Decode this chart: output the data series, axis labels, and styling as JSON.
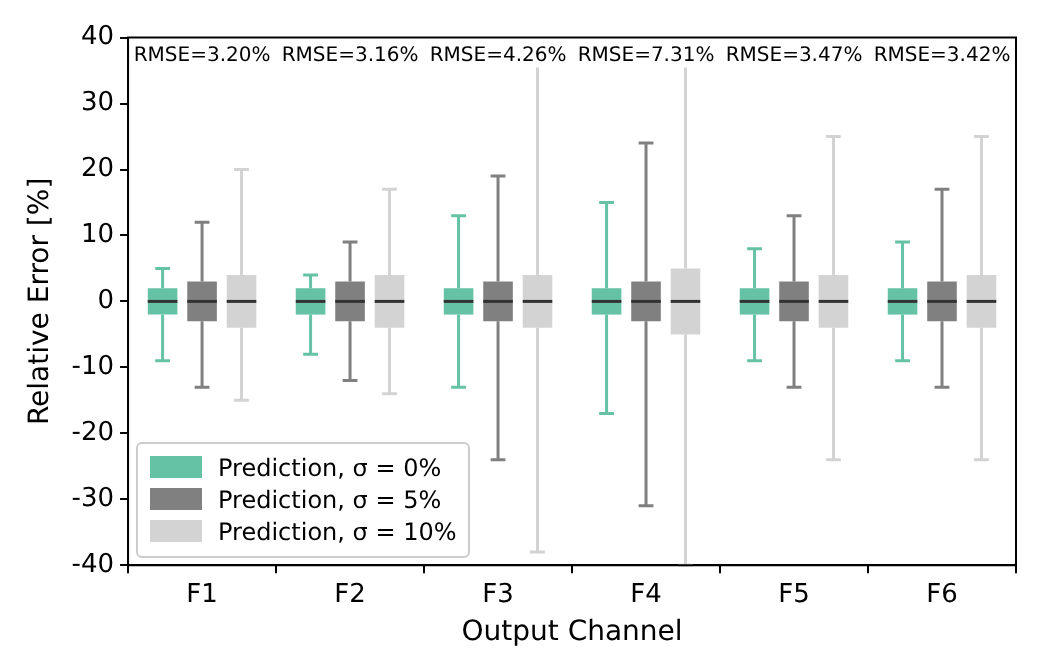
{
  "chart_data": {
    "type": "box",
    "xlabel": "Output Channel",
    "ylabel": "Relative Error [%]",
    "categories": [
      "F1",
      "F2",
      "F3",
      "F4",
      "F5",
      "F6"
    ],
    "ylim": [
      -40,
      40
    ],
    "yticks": [
      -40,
      -30,
      -20,
      -10,
      0,
      10,
      20,
      30,
      40
    ],
    "grid": false,
    "legend": "bottom left",
    "annotations": [
      "RMSE=3.20%",
      "RMSE=3.16%",
      "RMSE=4.26%",
      "RMSE=7.31%",
      "RMSE=3.47%",
      "RMSE=3.42%"
    ],
    "series": [
      {
        "name": "Prediction, σ = 0%",
        "color": "#66c2a5",
        "boxes": [
          {
            "low": -9,
            "q1": -2,
            "median": 0,
            "q3": 2,
            "high": 5
          },
          {
            "low": -8,
            "q1": -2,
            "median": 0,
            "q3": 2,
            "high": 4
          },
          {
            "low": -13,
            "q1": -2,
            "median": 0,
            "q3": 2,
            "high": 13
          },
          {
            "low": -17,
            "q1": -2,
            "median": 0,
            "q3": 2,
            "high": 15
          },
          {
            "low": -9,
            "q1": -2,
            "median": 0,
            "q3": 2,
            "high": 8
          },
          {
            "low": -9,
            "q1": -2,
            "median": 0,
            "q3": 2,
            "high": 9
          }
        ]
      },
      {
        "name": "Prediction, σ = 5%",
        "color": "#808080",
        "boxes": [
          {
            "low": -13,
            "q1": -3,
            "median": 0,
            "q3": 3,
            "high": 12
          },
          {
            "low": -12,
            "q1": -3,
            "median": 0,
            "q3": 3,
            "high": 9
          },
          {
            "low": -24,
            "q1": -3,
            "median": 0,
            "q3": 3,
            "high": 19
          },
          {
            "low": -31,
            "q1": -3,
            "median": 0,
            "q3": 3,
            "high": 24
          },
          {
            "low": -13,
            "q1": -3,
            "median": 0,
            "q3": 3,
            "high": 13
          },
          {
            "low": -13,
            "q1": -3,
            "median": 0,
            "q3": 3,
            "high": 17
          }
        ]
      },
      {
        "name": "Prediction, σ = 10%",
        "color": "#d3d3d3",
        "boxes": [
          {
            "low": -15,
            "q1": -4,
            "median": 0,
            "q3": 4,
            "high": 20
          },
          {
            "low": -14,
            "q1": -4,
            "median": 0,
            "q3": 4,
            "high": 17
          },
          {
            "low": -38,
            "q1": -4,
            "median": 0,
            "q3": 4,
            "high": 37
          },
          {
            "low": -40,
            "q1": -5,
            "median": 0,
            "q3": 5,
            "high": 38
          },
          {
            "low": -24,
            "q1": -4,
            "median": 0,
            "q3": 4,
            "high": 25
          },
          {
            "low": -24,
            "q1": -4,
            "median": 0,
            "q3": 4,
            "high": 25
          }
        ]
      }
    ]
  }
}
